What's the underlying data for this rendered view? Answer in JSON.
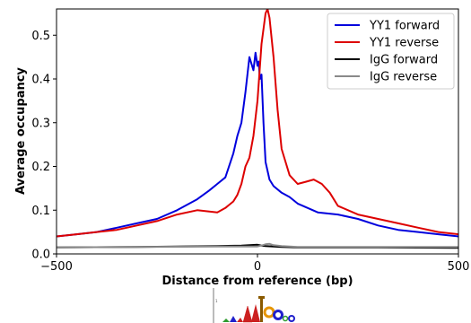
{
  "chart_data": {
    "type": "line",
    "xlabel": "Distance from reference (bp)",
    "ylabel": "Average occupancy",
    "xlim": [
      -500,
      500
    ],
    "ylim": [
      0,
      0.56
    ],
    "x_ticks": [
      -500,
      0,
      500
    ],
    "x_tick_labels": [
      "−500",
      "0",
      "500"
    ],
    "y_ticks": [
      0,
      0.1,
      0.2,
      0.3,
      0.4,
      0.5
    ],
    "y_tick_labels": [
      "0.0",
      "0.1",
      "0.2",
      "0.3",
      "0.4",
      "0.5"
    ],
    "grid": false,
    "legend_position": "top-right",
    "series": [
      {
        "name": "YY1 forward",
        "color": "#0000dd",
        "x": [
          -500,
          -450,
          -400,
          -350,
          -300,
          -250,
          -200,
          -150,
          -120,
          -100,
          -80,
          -60,
          -50,
          -40,
          -30,
          -20,
          -10,
          -5,
          0,
          3,
          6,
          10,
          15,
          20,
          30,
          40,
          60,
          80,
          100,
          150,
          200,
          250,
          300,
          350,
          400,
          450,
          500
        ],
        "y": [
          0.04,
          0.045,
          0.05,
          0.06,
          0.07,
          0.08,
          0.1,
          0.125,
          0.145,
          0.16,
          0.175,
          0.23,
          0.27,
          0.3,
          0.37,
          0.45,
          0.42,
          0.46,
          0.43,
          0.44,
          0.4,
          0.41,
          0.3,
          0.21,
          0.17,
          0.155,
          0.14,
          0.13,
          0.115,
          0.095,
          0.09,
          0.08,
          0.065,
          0.055,
          0.05,
          0.045,
          0.04
        ]
      },
      {
        "name": "YY1 reverse",
        "color": "#dd0000",
        "x": [
          -500,
          -450,
          -400,
          -350,
          -300,
          -250,
          -200,
          -150,
          -100,
          -80,
          -60,
          -50,
          -40,
          -30,
          -20,
          -10,
          0,
          10,
          20,
          25,
          30,
          40,
          50,
          60,
          80,
          100,
          120,
          140,
          160,
          180,
          200,
          250,
          300,
          350,
          400,
          450,
          500
        ],
        "y": [
          0.04,
          0.045,
          0.05,
          0.055,
          0.065,
          0.075,
          0.09,
          0.1,
          0.095,
          0.105,
          0.12,
          0.135,
          0.16,
          0.2,
          0.22,
          0.27,
          0.35,
          0.48,
          0.55,
          0.56,
          0.54,
          0.45,
          0.33,
          0.24,
          0.18,
          0.16,
          0.165,
          0.17,
          0.16,
          0.14,
          0.11,
          0.09,
          0.08,
          0.07,
          0.06,
          0.05,
          0.045
        ]
      },
      {
        "name": "IgG forward",
        "color": "#000000",
        "x": [
          -500,
          -300,
          -100,
          -40,
          -20,
          0,
          10,
          20,
          40,
          60,
          100,
          300,
          500
        ],
        "y": [
          0.015,
          0.016,
          0.018,
          0.019,
          0.02,
          0.021,
          0.019,
          0.018,
          0.017,
          0.016,
          0.015,
          0.015,
          0.014
        ],
        "stroke_width": 2
      },
      {
        "name": "IgG reverse",
        "color": "#8a8a8a",
        "x": [
          -500,
          -300,
          -100,
          0,
          10,
          20,
          30,
          40,
          60,
          100,
          300,
          500
        ],
        "y": [
          0.015,
          0.016,
          0.017,
          0.017,
          0.019,
          0.022,
          0.023,
          0.02,
          0.018,
          0.016,
          0.016,
          0.016
        ],
        "stroke_width": 2
      }
    ]
  }
}
